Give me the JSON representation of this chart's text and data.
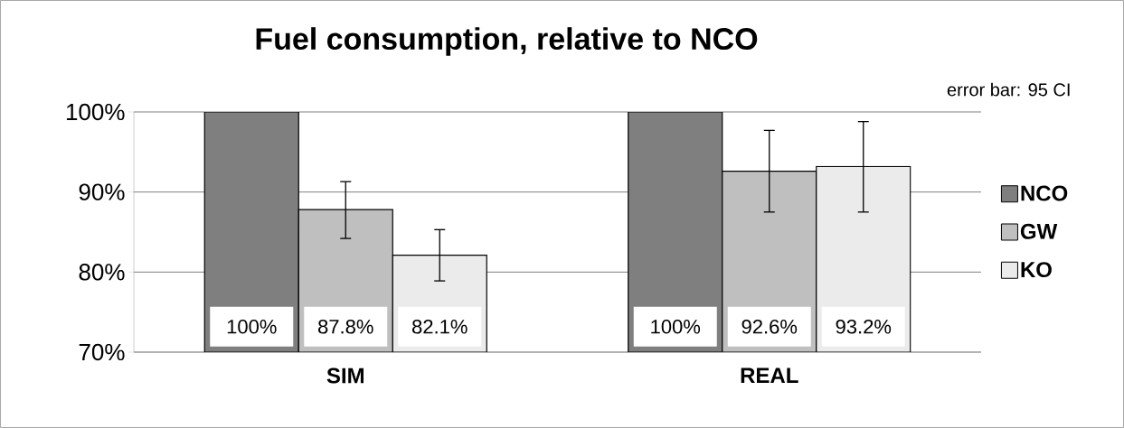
{
  "chart_data": {
    "type": "bar",
    "title": "Fuel consumption, relative to NCO",
    "annotations": [
      "error bar: 95 CI"
    ],
    "categories": [
      "SIM",
      "REAL"
    ],
    "series": [
      {
        "name": "NCO",
        "color": "#7f7f7f",
        "values": [
          100,
          100
        ],
        "errors": [
          null,
          null
        ],
        "value_labels": [
          "100%",
          "100%"
        ]
      },
      {
        "name": "GW",
        "color": "#bfbfbf",
        "values": [
          87.8,
          92.6
        ],
        "errors": [
          [
            84.2,
            91.3
          ],
          [
            87.5,
            97.7
          ]
        ],
        "value_labels": [
          "87.8%",
          "92.6%"
        ]
      },
      {
        "name": "KO",
        "color": "#ebebeb",
        "values": [
          82.1,
          93.2
        ],
        "errors": [
          [
            78.9,
            85.3
          ],
          [
            87.5,
            98.8
          ]
        ],
        "value_labels": [
          "82.1%",
          "93.2%"
        ]
      }
    ],
    "ylim": [
      70,
      100
    ],
    "yticks": [
      {
        "value": 70,
        "label": "70%"
      },
      {
        "value": 80,
        "label": "80%"
      },
      {
        "value": 90,
        "label": "90%"
      },
      {
        "value": 100,
        "label": "100%"
      }
    ],
    "grid": "y",
    "legend": "right"
  }
}
